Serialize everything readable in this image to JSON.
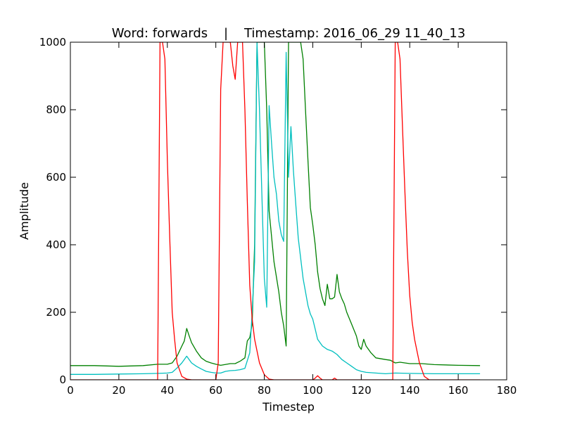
{
  "chart_data": {
    "type": "line",
    "title": "Word: forwards    |    Timestamp: 2016_06_29 11_40_13",
    "xlabel": "Timestep",
    "ylabel": "Amplitude",
    "xlim": [
      0,
      180
    ],
    "ylim": [
      0,
      1000
    ],
    "x_ticks": [
      0,
      20,
      40,
      60,
      80,
      100,
      120,
      140,
      160,
      180
    ],
    "y_ticks": [
      0,
      200,
      400,
      600,
      800,
      1000
    ],
    "x_tick_labels": [
      "0",
      "20",
      "40",
      "60",
      "80",
      "100",
      "120",
      "140",
      "160",
      "180"
    ],
    "y_tick_labels": [
      "0",
      "200",
      "400",
      "600",
      "800",
      "1000"
    ],
    "grid": false,
    "legend": "none",
    "series": [
      {
        "color": "#008000",
        "points": [
          [
            0,
            42
          ],
          [
            10,
            42
          ],
          [
            20,
            40
          ],
          [
            30,
            42
          ],
          [
            36,
            46
          ],
          [
            40,
            46
          ],
          [
            42,
            50
          ],
          [
            44,
            70
          ],
          [
            46,
            100
          ],
          [
            47,
            115
          ],
          [
            48,
            152
          ],
          [
            49,
            130
          ],
          [
            50,
            110
          ],
          [
            52,
            85
          ],
          [
            54,
            65
          ],
          [
            56,
            55
          ],
          [
            58,
            50
          ],
          [
            60,
            46
          ],
          [
            62,
            43
          ],
          [
            66,
            48
          ],
          [
            68,
            48
          ],
          [
            70,
            55
          ],
          [
            72,
            65
          ],
          [
            73,
            115
          ],
          [
            74,
            125
          ],
          [
            75,
            165
          ],
          [
            76,
            400
          ],
          [
            77,
            1000
          ],
          [
            80,
            1000
          ],
          [
            81,
            800
          ],
          [
            82,
            500
          ],
          [
            84,
            350
          ],
          [
            86,
            260
          ],
          [
            87,
            200
          ],
          [
            88,
            160
          ],
          [
            89,
            100
          ],
          [
            90,
            1000
          ],
          [
            95,
            1000
          ],
          [
            96,
            950
          ],
          [
            97,
            800
          ],
          [
            98,
            650
          ],
          [
            99,
            510
          ],
          [
            100,
            460
          ],
          [
            101,
            400
          ],
          [
            102,
            320
          ],
          [
            103,
            270
          ],
          [
            104,
            240
          ],
          [
            105,
            220
          ],
          [
            106,
            283
          ],
          [
            107,
            240
          ],
          [
            108,
            240
          ],
          [
            109,
            245
          ],
          [
            110,
            312
          ],
          [
            111,
            260
          ],
          [
            112,
            240
          ],
          [
            113,
            225
          ],
          [
            114,
            200
          ],
          [
            116,
            165
          ],
          [
            118,
            130
          ],
          [
            119,
            100
          ],
          [
            120,
            90
          ],
          [
            121,
            120
          ],
          [
            122,
            100
          ],
          [
            124,
            80
          ],
          [
            126,
            65
          ],
          [
            130,
            60
          ],
          [
            132,
            58
          ],
          [
            134,
            50
          ],
          [
            136,
            52
          ],
          [
            140,
            48
          ],
          [
            145,
            48
          ],
          [
            150,
            45
          ],
          [
            160,
            43
          ],
          [
            169,
            42
          ]
        ]
      },
      {
        "color": "#00bfbf",
        "points": [
          [
            0,
            16
          ],
          [
            10,
            16
          ],
          [
            20,
            17
          ],
          [
            30,
            18
          ],
          [
            36,
            19
          ],
          [
            40,
            20
          ],
          [
            42,
            22
          ],
          [
            44,
            35
          ],
          [
            46,
            50
          ],
          [
            48,
            70
          ],
          [
            50,
            50
          ],
          [
            52,
            40
          ],
          [
            54,
            32
          ],
          [
            56,
            25
          ],
          [
            58,
            22
          ],
          [
            60,
            20
          ],
          [
            62,
            20
          ],
          [
            64,
            25
          ],
          [
            66,
            27
          ],
          [
            68,
            28
          ],
          [
            70,
            30
          ],
          [
            72,
            34
          ],
          [
            74,
            80
          ],
          [
            75,
            200
          ],
          [
            76,
            350
          ],
          [
            77,
            1000
          ],
          [
            78,
            800
          ],
          [
            79,
            550
          ],
          [
            80,
            300
          ],
          [
            81,
            215
          ],
          [
            82,
            812
          ],
          [
            83,
            700
          ],
          [
            84,
            600
          ],
          [
            85,
            550
          ],
          [
            86,
            470
          ],
          [
            87,
            430
          ],
          [
            88,
            410
          ],
          [
            89,
            970
          ],
          [
            90,
            600
          ],
          [
            91,
            750
          ],
          [
            92,
            620
          ],
          [
            93,
            520
          ],
          [
            94,
            420
          ],
          [
            96,
            300
          ],
          [
            98,
            220
          ],
          [
            99,
            195
          ],
          [
            100,
            180
          ],
          [
            101,
            150
          ],
          [
            102,
            120
          ],
          [
            104,
            100
          ],
          [
            106,
            90
          ],
          [
            108,
            85
          ],
          [
            110,
            75
          ],
          [
            112,
            60
          ],
          [
            114,
            50
          ],
          [
            116,
            40
          ],
          [
            118,
            30
          ],
          [
            120,
            25
          ],
          [
            122,
            22
          ],
          [
            126,
            20
          ],
          [
            130,
            18
          ],
          [
            134,
            20
          ],
          [
            140,
            19
          ],
          [
            150,
            18
          ],
          [
            160,
            18
          ],
          [
            169,
            18
          ]
        ]
      },
      {
        "color": "#ff0000",
        "points": [
          [
            0,
            0
          ],
          [
            35,
            0
          ],
          [
            36,
            0
          ],
          [
            37,
            1000
          ],
          [
            38,
            1000
          ],
          [
            39,
            950
          ],
          [
            40,
            650
          ],
          [
            41,
            420
          ],
          [
            42,
            200
          ],
          [
            43,
            120
          ],
          [
            44,
            50
          ],
          [
            46,
            10
          ],
          [
            48,
            2
          ],
          [
            50,
            0
          ],
          [
            60,
            0
          ],
          [
            61,
            50
          ],
          [
            62,
            860
          ],
          [
            63,
            1000
          ],
          [
            66,
            1000
          ],
          [
            67,
            930
          ],
          [
            68,
            890
          ],
          [
            69,
            1000
          ],
          [
            71,
            1000
          ],
          [
            72,
            800
          ],
          [
            73,
            530
          ],
          [
            74,
            280
          ],
          [
            75,
            180
          ],
          [
            76,
            120
          ],
          [
            78,
            50
          ],
          [
            80,
            15
          ],
          [
            82,
            2
          ],
          [
            84,
            0
          ],
          [
            90,
            0
          ],
          [
            100,
            0
          ],
          [
            101,
            5
          ],
          [
            102,
            12
          ],
          [
            103,
            5
          ],
          [
            104,
            0
          ],
          [
            108,
            0
          ],
          [
            109,
            5
          ],
          [
            110,
            0
          ],
          [
            130,
            0
          ],
          [
            133,
            0
          ],
          [
            134,
            1000
          ],
          [
            135,
            1000
          ],
          [
            136,
            950
          ],
          [
            137,
            750
          ],
          [
            138,
            560
          ],
          [
            139,
            380
          ],
          [
            140,
            250
          ],
          [
            141,
            170
          ],
          [
            142,
            120
          ],
          [
            144,
            50
          ],
          [
            146,
            10
          ],
          [
            148,
            0
          ],
          [
            160,
            0
          ],
          [
            169,
            0
          ]
        ]
      }
    ]
  }
}
